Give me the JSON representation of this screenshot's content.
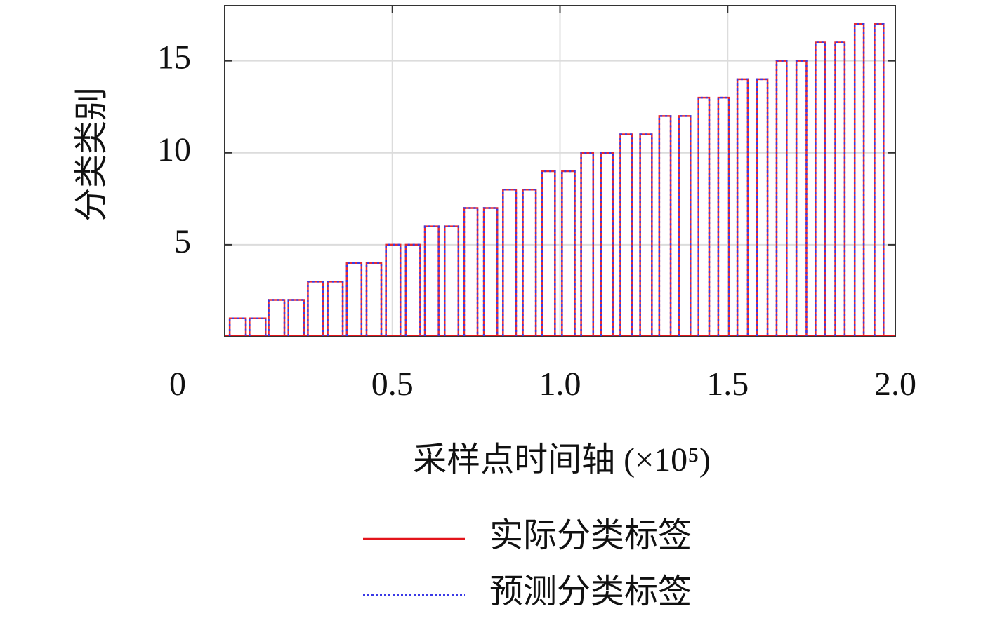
{
  "chart_data": {
    "type": "step",
    "ylabel": "分类类别",
    "xlabel": "采样点时间轴 (×10⁵)",
    "xlim": [
      0,
      2.0
    ],
    "ylim": [
      0,
      18
    ],
    "xticks": [
      0,
      0.5,
      {
        "value": 1.0,
        "label": "1.0"
      },
      1.5,
      {
        "value": 2.0,
        "label": "2.0"
      }
    ],
    "yticks": [
      5,
      10,
      15
    ],
    "grid": true,
    "x_start": [
      0.015,
      0.074,
      0.131,
      0.19,
      0.248,
      0.307,
      0.364,
      0.423,
      0.481,
      0.54,
      0.597,
      0.656,
      0.714,
      0.773,
      0.83,
      0.889,
      0.947,
      1.006,
      1.063,
      1.122,
      1.18,
      1.239,
      1.296,
      1.355,
      1.413,
      1.472,
      1.529,
      1.588,
      1.646,
      1.705,
      1.762,
      1.821,
      1.879,
      1.938
    ],
    "x_end": [
      0.063,
      0.122,
      0.178,
      0.237,
      0.293,
      0.352,
      0.408,
      0.467,
      0.524,
      0.583,
      0.638,
      0.697,
      0.754,
      0.813,
      0.869,
      0.928,
      0.985,
      1.044,
      1.099,
      1.158,
      1.215,
      1.274,
      1.33,
      1.389,
      1.445,
      1.504,
      1.56,
      1.619,
      1.676,
      1.735,
      1.79,
      1.849,
      1.906,
      1.965
    ],
    "series": [
      {
        "name": "实际分类标签",
        "color": "#e3141b",
        "style": "solid",
        "values": [
          1,
          1,
          2,
          2,
          3,
          3,
          4,
          4,
          5,
          5,
          6,
          6,
          7,
          7,
          8,
          8,
          9,
          9,
          10,
          10,
          11,
          11,
          12,
          12,
          13,
          13,
          14,
          14,
          15,
          15,
          16,
          16,
          17,
          17
        ]
      },
      {
        "name": "预测分类标签",
        "color": "#3a3ae6",
        "style": "dotted",
        "values": [
          1,
          1,
          2,
          2,
          3,
          3,
          4,
          4,
          5,
          5,
          6,
          6,
          7,
          7,
          8,
          8,
          9,
          9,
          10,
          10,
          11,
          11,
          12,
          12,
          13,
          13,
          14,
          14,
          15,
          15,
          16,
          16,
          17,
          17
        ]
      }
    ]
  }
}
